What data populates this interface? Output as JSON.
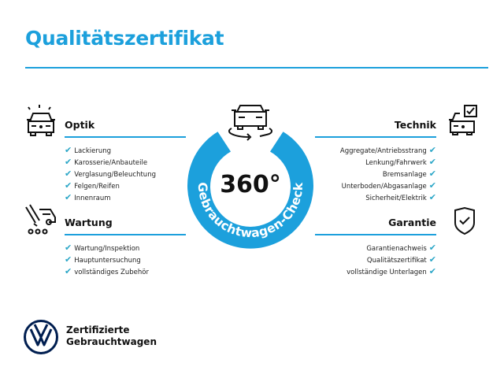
{
  "title": "Qualitätszertifikat",
  "center": {
    "label": "360°",
    "ring_text": "Gebrauchtwagen-Check"
  },
  "sections": {
    "optik": {
      "title": "Optik",
      "items": [
        "Lackierung",
        "Karosserie/Anbauteile",
        "Verglasung/Beleuchtung",
        "Felgen/Reifen",
        "Innenraum"
      ]
    },
    "wartung": {
      "title": "Wartung",
      "items": [
        "Wartung/Inspektion",
        "Hauptuntersuchung",
        "vollständiges Zubehör"
      ]
    },
    "technik": {
      "title": "Technik",
      "items": [
        "Aggregate/Antriebsstrang",
        "Lenkung/Fahrwerk",
        "Bremsanlage",
        "Unterboden/Abgasanlage",
        "Sicherheit/Elektrik"
      ]
    },
    "garantie": {
      "title": "Garantie",
      "items": [
        "Garantienachweis",
        "Qualitätszertifikat",
        "vollständige Unterlagen"
      ]
    }
  },
  "check_glyph": "✔",
  "footer": {
    "line1": "Zertifizierte",
    "line2": "Gebrauchtwagen"
  },
  "colors": {
    "accent": "#1ca0dc",
    "check": "#2aa6c7",
    "logo": "#001e50"
  }
}
